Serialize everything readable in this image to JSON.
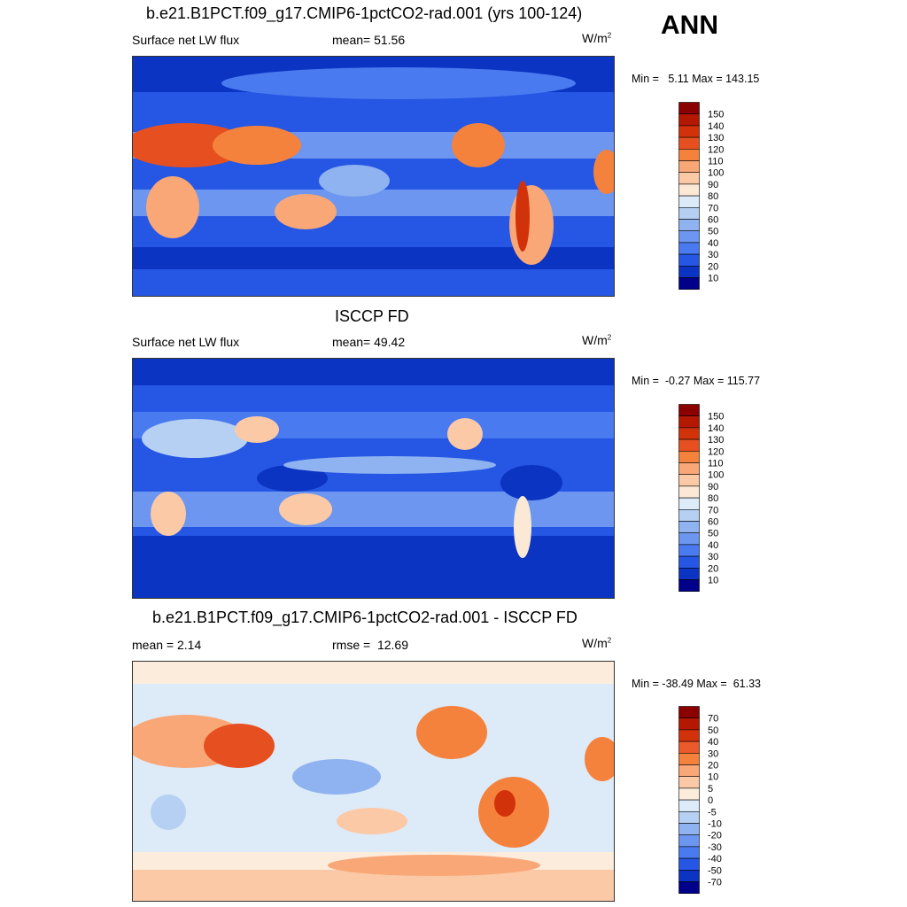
{
  "season": "ANN",
  "panels": [
    {
      "title": "b.e21.B1PCT.f09_g17.CMIP6-1pctCO2-rad.001 (yrs 100-124)",
      "left": "Surface net LW flux",
      "center_label": "mean=",
      "center_value": "51.56",
      "right_unit": "W/m",
      "right_sup": "2",
      "min_label": "Min =",
      "min_value": "5.11",
      "max_label": "Max =",
      "max_value": "143.15",
      "colorbar": {
        "labels": [
          "150",
          "140",
          "130",
          "120",
          "110",
          "100",
          "90",
          "80",
          "70",
          "60",
          "50",
          "40",
          "30",
          "20",
          "10"
        ],
        "colors": [
          "#8b0000",
          "#b41800",
          "#d2320a",
          "#e65020",
          "#f5823c",
          "#f9a777",
          "#fcc9a6",
          "#fbe9d6",
          "#ddeaf7",
          "#b6d0f3",
          "#8fb2f0",
          "#6c96ef",
          "#4a7af0",
          "#2557e4",
          "#0b34c2",
          "#00008b"
        ]
      }
    },
    {
      "title": "ISCCP FD",
      "left": "Surface net LW flux",
      "center_label": "mean=",
      "center_value": "49.42",
      "right_unit": "W/m",
      "right_sup": "2",
      "min_label": "Min =",
      "min_value": "-0.27",
      "max_label": "Max =",
      "max_value": "115.77",
      "colorbar": {
        "labels": [
          "150",
          "140",
          "130",
          "120",
          "110",
          "100",
          "90",
          "80",
          "70",
          "60",
          "50",
          "40",
          "30",
          "20",
          "10"
        ],
        "colors": [
          "#8b0000",
          "#b41800",
          "#d2320a",
          "#e65020",
          "#f5823c",
          "#f9a777",
          "#fcc9a6",
          "#fbe9d6",
          "#ddeaf7",
          "#b6d0f3",
          "#8fb2f0",
          "#6c96ef",
          "#4a7af0",
          "#2557e4",
          "#0b34c2",
          "#00008b"
        ]
      }
    },
    {
      "title": "b.e21.B1PCT.f09_g17.CMIP6-1pctCO2-rad.001 - ISCCP FD",
      "left": "mean =   2.14",
      "center_label": "rmse =",
      "center_value": "12.69",
      "right_unit": "W/m",
      "right_sup": "2",
      "min_label": "Min =",
      "min_value": "-38.49",
      "max_label": "Max =",
      "max_value": "61.33",
      "colorbar": {
        "labels": [
          "70",
          "50",
          "40",
          "30",
          "20",
          "10",
          "5",
          "0",
          "-5",
          "-10",
          "-20",
          "-30",
          "-40",
          "-50",
          "-70"
        ],
        "colors": [
          "#8b0000",
          "#b41800",
          "#d2320a",
          "#ea5a2a",
          "#f5823c",
          "#f9a777",
          "#fcc9a6",
          "#fbecdc",
          "#ddeaf7",
          "#b6d0f3",
          "#8fb2f0",
          "#6c96ef",
          "#4a7af0",
          "#2557e4",
          "#0b34c2",
          "#00008b"
        ]
      }
    }
  ],
  "chart_data": [
    {
      "type": "heatmap",
      "title": "b.e21.B1PCT.f09_g17.CMIP6-1pctCO2-rad.001 (yrs 100-124)",
      "variable": "Surface net LW flux",
      "units": "W/m2",
      "mean": 51.56,
      "min": 5.11,
      "max": 143.15,
      "levels": [
        10,
        20,
        30,
        40,
        50,
        60,
        70,
        80,
        90,
        100,
        110,
        120,
        130,
        140,
        150
      ]
    },
    {
      "type": "heatmap",
      "title": "ISCCP FD",
      "variable": "Surface net LW flux",
      "units": "W/m2",
      "mean": 49.42,
      "min": -0.27,
      "max": 115.77,
      "levels": [
        10,
        20,
        30,
        40,
        50,
        60,
        70,
        80,
        90,
        100,
        110,
        120,
        130,
        140,
        150
      ]
    },
    {
      "type": "heatmap",
      "title": "b.e21.B1PCT.f09_g17.CMIP6-1pctCO2-rad.001 - ISCCP FD",
      "units": "W/m2",
      "mean": 2.14,
      "rmse": 12.69,
      "min": -38.49,
      "max": 61.33,
      "levels": [
        -70,
        -50,
        -40,
        -30,
        -20,
        -10,
        -5,
        0,
        5,
        10,
        20,
        30,
        40,
        50,
        70
      ]
    }
  ]
}
